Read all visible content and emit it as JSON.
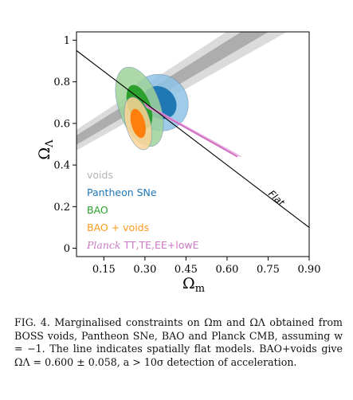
{
  "chart_data": {
    "type": "contour",
    "xlabel": "Ωm",
    "ylabel": "ΩΛ",
    "xlim": [
      0.05,
      0.9
    ],
    "ylim": [
      -0.04,
      1.04
    ],
    "xticks": [
      0.15,
      0.3,
      0.45,
      0.6,
      0.75,
      0.9
    ],
    "xtick_labels": [
      "0.15",
      "0.30",
      "0.45",
      "0.60",
      "0.75",
      "0.90"
    ],
    "yticks": [
      0,
      0.2,
      0.4,
      0.6,
      0.8,
      1
    ],
    "ytick_labels": [
      "0",
      "0.2",
      "0.4",
      "0.6",
      "0.8",
      "1"
    ],
    "legend_position": "lower-left",
    "flat_line": {
      "label": "Flat",
      "x": [
        0.05,
        0.9
      ],
      "y": [
        0.95,
        0.1
      ]
    },
    "series": [
      {
        "name": "voids",
        "color": "#bdbdbd",
        "inner_color": "#9e9e9e",
        "shape": "band",
        "x": [
          0.05,
          0.9
        ],
        "y_center": [
          0.52,
          1.2
        ],
        "half_width": [
          0.05,
          0.1
        ]
      },
      {
        "name": "Pantheon SNe",
        "color": "#8ec4e6",
        "inner_color": "#1f77b4",
        "center": [
          0.355,
          0.7
        ],
        "outer_semi": [
          0.1,
          0.14
        ],
        "inner_semi": [
          0.055,
          0.086
        ],
        "angle": 45
      },
      {
        "name": "BAO",
        "color": "#9fd39a",
        "inner_color": "#2ca02c",
        "center": [
          0.28,
          0.68
        ],
        "outer_semi": [
          0.075,
          0.2
        ],
        "inner_semi": [
          0.04,
          0.11
        ],
        "angle": 70
      },
      {
        "name": "BAO + voids",
        "color": "#fbd498",
        "inner_color": "#ff7f0e",
        "center": [
          0.275,
          0.6
        ],
        "outer_semi": [
          0.045,
          0.13
        ],
        "inner_semi": [
          0.025,
          0.072
        ],
        "angle": 75
      },
      {
        "name": "Planck TT,TE,EE+lowE",
        "color": "#e7a6dc",
        "inner_color": "#cf6fc4",
        "from": [
          0.3,
          0.69
        ],
        "to": [
          0.65,
          0.44
        ],
        "shape": "degeneracy-line"
      }
    ],
    "legend": [
      {
        "text": "voids",
        "color": "#b5b5b5"
      },
      {
        "text": "Pantheon SNe",
        "color": "#1f77b4"
      },
      {
        "text": "BAO",
        "color": "#2ca02c"
      },
      {
        "text": "BAO + voids",
        "color": "#ff9a1e"
      },
      {
        "text_italic": "Planck",
        "text": " TT,TE,EE+lowE",
        "color": "#cc79c4"
      }
    ]
  },
  "caption": "FIG. 4. Marginalised constraints on Ωm and ΩΛ obtained from BOSS voids, Pantheon SNe, BAO and Planck CMB, assuming w = −1. The line indicates spatially flat models. BAO+voids give ΩΛ = 0.600 ± 0.058, a > 10σ detection of acceleration."
}
